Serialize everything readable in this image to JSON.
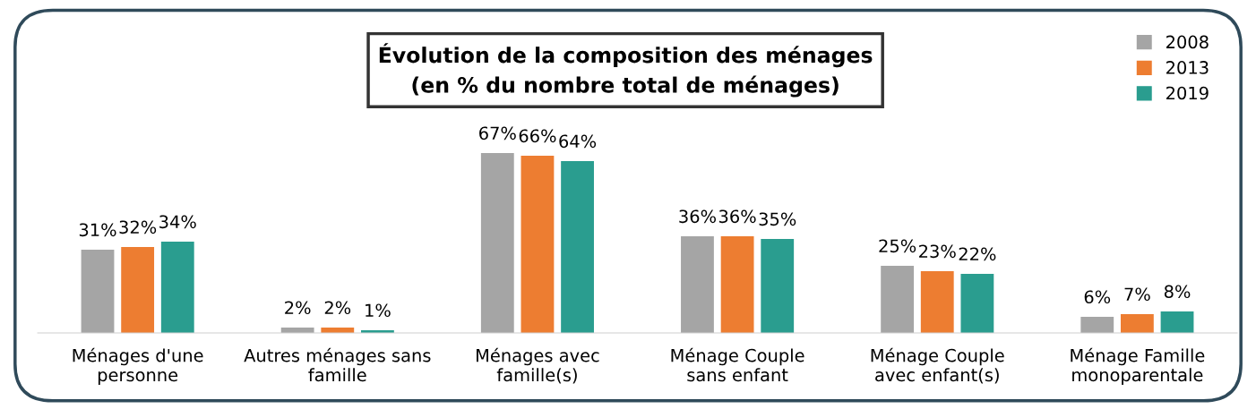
{
  "chart_data": {
    "type": "bar",
    "title": "Évolution de la composition des ménages\n(en % du nombre total de ménages)",
    "categories": [
      "Ménages d'une\npersonne",
      "Autres ménages sans\nfamille",
      "Ménages avec\nfamille(s)",
      "Ménage Couple\nsans enfant",
      "Ménage Couple\navec enfant(s)",
      "Ménage Famille\nmonoparentale"
    ],
    "series": [
      {
        "name": "2008",
        "color": "#a5a5a5",
        "values": [
          31,
          2,
          67,
          36,
          25,
          6
        ],
        "value_labels": [
          "31%",
          "2%",
          "67%",
          "36%",
          "25%",
          "6%"
        ]
      },
      {
        "name": "2013",
        "color": "#ed7d31",
        "values": [
          32,
          2,
          66,
          36,
          23,
          7
        ],
        "value_labels": [
          "32%",
          "2%",
          "66%",
          "36%",
          "23%",
          "7%"
        ]
      },
      {
        "name": "2019",
        "color": "#2a9d8f",
        "values": [
          34,
          1,
          64,
          35,
          22,
          8
        ],
        "value_labels": [
          "34%",
          "1%",
          "64%",
          "35%",
          "22%",
          "8%"
        ]
      }
    ],
    "legend": "top right",
    "grid": false
  }
}
